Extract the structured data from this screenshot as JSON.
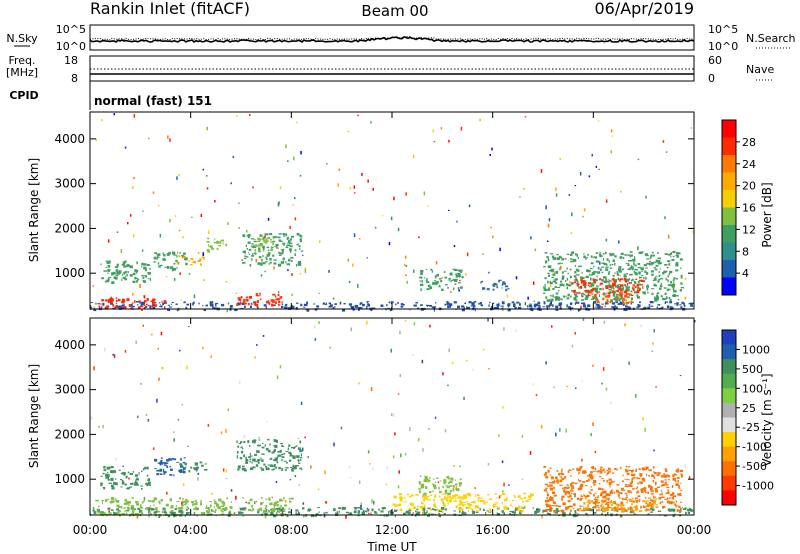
{
  "header": {
    "site": "Rankin Inlet (fitACF)",
    "beam": "Beam 00",
    "date": "06/Apr/2019"
  },
  "noise_panel": {
    "left_label": "N.Sky",
    "right_label": "N.Search",
    "ticks": [
      "10^5",
      "10^0"
    ],
    "right_ticks": [
      "10^5",
      "10^0"
    ]
  },
  "freq_panel": {
    "left_label": "Freq.",
    "left_unit": "[MHz]",
    "left_ticks": [
      "18",
      "8"
    ],
    "right_label": "Nave",
    "right_ticks": [
      "60",
      "0"
    ]
  },
  "cpid": {
    "label": "CPID",
    "value": "normal (fast) 151"
  },
  "chart_data": [
    {
      "type": "heatmap",
      "name": "power",
      "ylabel": "Slant Range [km]",
      "yticks": [
        "4000",
        "3000",
        "2000",
        "1000"
      ],
      "ytick_values": [
        4000,
        3000,
        2000,
        1000
      ],
      "ylim": [
        200,
        4600
      ],
      "xlim": [
        0,
        24
      ],
      "xticks": [
        "00:00",
        "04:00",
        "08:00",
        "12:00",
        "16:00",
        "20:00",
        "00:00"
      ],
      "colorbar": {
        "label": "Power [dB]",
        "tick_labels": [
          "28",
          "24",
          "20",
          "16",
          "12",
          "8",
          "4"
        ],
        "colors": [
          "#ff0000",
          "#ff2a00",
          "#ff7a00",
          "#ffaa00",
          "#f5d000",
          "#7fc040",
          "#3f9f5f",
          "#2f8f8f",
          "#1f5faf",
          "#0000ff"
        ]
      },
      "regions": [
        {
          "t0": 0.0,
          "t1": 24.0,
          "r0": 200,
          "r1": 380,
          "color": "#1f4faf"
        },
        {
          "t0": 0.2,
          "t1": 3.0,
          "r0": 220,
          "r1": 480,
          "color": "#ff2000"
        },
        {
          "t0": 0.4,
          "t1": 2.4,
          "r0": 800,
          "r1": 1300,
          "color": "#3f9f5f"
        },
        {
          "t0": 2.5,
          "t1": 3.8,
          "r0": 1100,
          "r1": 1500,
          "color": "#3f9f5f"
        },
        {
          "t0": 3.4,
          "t1": 4.6,
          "r0": 1200,
          "r1": 1400,
          "color": "#ffaa00"
        },
        {
          "t0": 4.6,
          "t1": 5.4,
          "r0": 1500,
          "r1": 1800,
          "color": "#7fc040"
        },
        {
          "t0": 5.8,
          "t1": 7.6,
          "r0": 300,
          "r1": 600,
          "color": "#ff3000"
        },
        {
          "t0": 6.0,
          "t1": 8.4,
          "r0": 1200,
          "r1": 1900,
          "color": "#3f9f5f"
        },
        {
          "t0": 6.4,
          "t1": 7.4,
          "r0": 1500,
          "r1": 1800,
          "color": "#7fc040"
        },
        {
          "t0": 13.0,
          "t1": 14.8,
          "r0": 650,
          "r1": 1100,
          "color": "#3f9f5f"
        },
        {
          "t0": 15.5,
          "t1": 16.6,
          "r0": 650,
          "r1": 900,
          "color": "#2f6f9f"
        },
        {
          "t0": 18.0,
          "t1": 23.5,
          "r0": 400,
          "r1": 1500,
          "color": "#3f9f5f"
        },
        {
          "t0": 19.0,
          "t1": 22.0,
          "r0": 500,
          "r1": 900,
          "color": "#ff3000"
        },
        {
          "t0": 20.0,
          "t1": 21.5,
          "r0": 300,
          "r1": 600,
          "color": "#ff5a00"
        }
      ]
    },
    {
      "type": "heatmap",
      "name": "velocity",
      "ylabel": "Slant Range [km]",
      "yticks": [
        "4000",
        "3000",
        "2000",
        "1000"
      ],
      "ytick_values": [
        4000,
        3000,
        2000,
        1000
      ],
      "ylim": [
        200,
        4600
      ],
      "xlim": [
        0,
        24
      ],
      "xlabel": "Time UT",
      "xticks": [
        "00:00",
        "04:00",
        "08:00",
        "12:00",
        "16:00",
        "20:00",
        "00:00"
      ],
      "colorbar": {
        "label": "Velocity [m s⁻¹]",
        "tick_labels": [
          "1000",
          "500",
          "100",
          "25",
          "-25",
          "-100",
          "-500",
          "-1000"
        ],
        "colors": [
          "#1f3fbf",
          "#1f5faf",
          "#3f8f5f",
          "#4faf4f",
          "#7fd040",
          "#b0b0b0",
          "#e0e0e0",
          "#ffd000",
          "#ffa000",
          "#ff7000",
          "#ff3a00",
          "#ff0000"
        ]
      },
      "regions": [
        {
          "t0": 0.0,
          "t1": 24.0,
          "r0": 200,
          "r1": 380,
          "color": "#3f8f5f"
        },
        {
          "t0": 0.2,
          "t1": 5.6,
          "r0": 220,
          "r1": 600,
          "color": "#7fc040"
        },
        {
          "t0": 0.4,
          "t1": 2.4,
          "r0": 800,
          "r1": 1300,
          "color": "#3f8f5f"
        },
        {
          "t0": 2.5,
          "t1": 3.8,
          "r0": 1100,
          "r1": 1500,
          "color": "#1f5faf"
        },
        {
          "t0": 3.4,
          "t1": 4.6,
          "r0": 1200,
          "r1": 1400,
          "color": "#3f8f5f"
        },
        {
          "t0": 5.8,
          "t1": 8.4,
          "r0": 1200,
          "r1": 1900,
          "color": "#3f8f5f"
        },
        {
          "t0": 6.0,
          "t1": 8.0,
          "r0": 300,
          "r1": 600,
          "color": "#7fc040"
        },
        {
          "t0": 13.0,
          "t1": 14.8,
          "r0": 650,
          "r1": 1100,
          "color": "#7fc040"
        },
        {
          "t0": 12.0,
          "t1": 17.5,
          "r0": 300,
          "r1": 700,
          "color": "#ffd000"
        },
        {
          "t0": 18.0,
          "t1": 23.5,
          "r0": 300,
          "r1": 1300,
          "color": "#ff7000"
        },
        {
          "t0": 19.5,
          "t1": 22.5,
          "r0": 300,
          "r1": 600,
          "color": "#ffa000"
        }
      ]
    }
  ]
}
